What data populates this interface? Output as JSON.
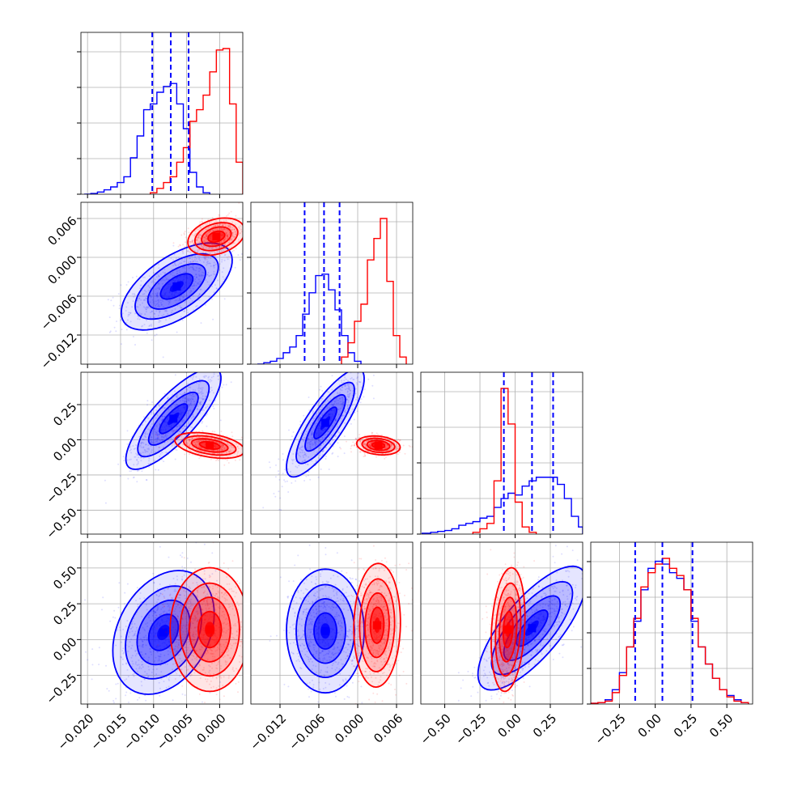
{
  "chart_data": {
    "type": "corner",
    "title": "",
    "n_params": 4,
    "grid": true,
    "legend": "none",
    "colors": {
      "blue": "#0000ff",
      "red": "#ff0000"
    },
    "series": [
      {
        "color": "#0000ff"
      },
      {
        "color": "#ff0000"
      }
    ],
    "params": [
      {
        "range": [
          -0.021,
          0.0035
        ],
        "ticks": [
          -0.02,
          -0.015,
          -0.01,
          -0.005,
          0.0
        ],
        "tick_labels": [
          "−0.020",
          "−0.015",
          "−0.010",
          "−0.005",
          "0.000"
        ]
      },
      {
        "range": [
          -0.0165,
          0.0085
        ],
        "ticks": [
          -0.012,
          -0.006,
          0.0,
          0.006
        ],
        "tick_labels": [
          "−0.012",
          "−0.006",
          "0.000",
          "0.006"
        ]
      },
      {
        "range": [
          -0.67,
          0.48
        ],
        "ticks": [
          -0.5,
          -0.25,
          0.0,
          0.25
        ],
        "tick_labels": [
          "−0.50",
          "−0.25",
          "0.00",
          "0.25"
        ]
      },
      {
        "range": [
          -0.45,
          0.68
        ],
        "ticks": [
          -0.25,
          0.0,
          0.25,
          0.5
        ],
        "tick_labels": [
          "−0.25",
          "0.00",
          "0.25",
          "0.50"
        ]
      }
    ],
    "quantile_lines": [
      {
        "param": 0,
        "values": [
          -0.0102,
          -0.0074,
          -0.0047
        ]
      },
      {
        "param": 1,
        "values": [
          -0.0082,
          -0.0052,
          -0.0028
        ]
      },
      {
        "param": 2,
        "values": [
          -0.08,
          0.12,
          0.27
        ]
      },
      {
        "param": 3,
        "values": [
          -0.14,
          0.05,
          0.26
        ]
      }
    ],
    "marginals": [
      {
        "param": 0,
        "blue": {
          "edges": [
            -0.0205,
            -0.0195,
            -0.0185,
            -0.0175,
            -0.0165,
            -0.0155,
            -0.0145,
            -0.0135,
            -0.0125,
            -0.0115,
            -0.0105,
            -0.0095,
            -0.0085,
            -0.0075,
            -0.0065,
            -0.0055,
            -0.0045,
            -0.0035,
            -0.0025,
            -0.0015
          ],
          "counts": [
            0,
            0.5,
            1.5,
            3,
            5,
            8,
            12,
            25,
            40,
            58,
            62,
            70,
            74,
            76,
            62,
            45,
            15,
            5,
            1
          ]
        },
        "red": {
          "edges": [
            -0.0105,
            -0.0095,
            -0.0085,
            -0.0075,
            -0.0065,
            -0.0055,
            -0.0045,
            -0.0035,
            -0.0025,
            -0.0015,
            -0.0005,
            0.0005,
            0.0015,
            0.0025,
            0.0035
          ],
          "counts": [
            1,
            4,
            8,
            12,
            22,
            32,
            50,
            58,
            68,
            84,
            99,
            100,
            62,
            22
          ]
        }
      },
      {
        "param": 1,
        "blue": {
          "edges": [
            -0.0155,
            -0.0145,
            -0.0135,
            -0.0125,
            -0.0115,
            -0.0105,
            -0.0095,
            -0.0085,
            -0.0075,
            -0.0065,
            -0.0055,
            -0.0045,
            -0.0035,
            -0.0025,
            -0.0015,
            -0.0005,
            0.0005
          ],
          "counts": [
            0,
            1,
            2,
            4,
            8,
            12,
            20,
            35,
            50,
            62,
            63,
            52,
            38,
            20,
            8,
            2
          ]
        },
        "red": {
          "edges": [
            -0.0025,
            -0.0015,
            -0.0005,
            0.0005,
            0.0015,
            0.0025,
            0.0035,
            0.0045,
            0.0055,
            0.0065,
            0.0075
          ],
          "counts": [
            5,
            15,
            30,
            42,
            73,
            88,
            102,
            58,
            20,
            5
          ]
        }
      },
      {
        "param": 2,
        "blue": {
          "edges": [
            -0.66,
            -0.6,
            -0.55,
            -0.5,
            -0.45,
            -0.4,
            -0.35,
            -0.3,
            -0.25,
            -0.2,
            -0.15,
            -0.1,
            -0.05,
            0.0,
            0.05,
            0.1,
            0.15,
            0.2,
            0.25,
            0.3,
            0.35,
            0.4,
            0.45,
            0.48
          ],
          "counts": [
            0.5,
            1,
            1.5,
            2,
            3,
            5,
            6,
            7,
            9,
            10,
            15,
            20,
            23,
            22,
            27,
            30,
            32,
            32,
            32,
            28,
            20,
            10,
            4
          ]
        },
        "red": {
          "edges": [
            -0.3,
            -0.25,
            -0.2,
            -0.15,
            -0.1,
            -0.05,
            0.0,
            0.05,
            0.1,
            0.15
          ],
          "counts": [
            1,
            3,
            6,
            30,
            82,
            62,
            18,
            4,
            1
          ]
        }
      },
      {
        "param": 3,
        "blue": {
          "edges": [
            -0.45,
            -0.4,
            -0.35,
            -0.3,
            -0.25,
            -0.2,
            -0.15,
            -0.1,
            -0.05,
            0.0,
            0.05,
            0.1,
            0.15,
            0.2,
            0.25,
            0.3,
            0.35,
            0.4,
            0.45,
            0.5,
            0.55,
            0.6,
            0.65
          ],
          "counts": [
            0.5,
            1,
            3,
            10,
            22,
            40,
            58,
            80,
            95,
            100,
            98,
            92,
            88,
            80,
            58,
            40,
            28,
            18,
            10,
            6,
            3,
            1
          ]
        },
        "red": {
          "edges": [
            -0.45,
            -0.4,
            -0.35,
            -0.3,
            -0.25,
            -0.2,
            -0.15,
            -0.1,
            -0.05,
            0.0,
            0.05,
            0.1,
            0.15,
            0.2,
            0.25,
            0.3,
            0.35,
            0.4,
            0.45,
            0.5,
            0.55,
            0.6,
            0.65
          ],
          "counts": [
            0.5,
            1,
            2,
            8,
            20,
            40,
            60,
            82,
            92,
            98,
            102,
            95,
            90,
            80,
            60,
            40,
            28,
            18,
            10,
            5,
            2,
            1
          ]
        }
      }
    ],
    "joints": [
      {
        "x": 0,
        "y": 1,
        "blue": {
          "mean": [
            -0.0065,
            -0.0045
          ],
          "sd": [
            0.0035,
            0.0028
          ],
          "rho": 0.6
        },
        "red": {
          "mean": [
            -0.0005,
            0.0032
          ],
          "sd": [
            0.0018,
            0.0012
          ],
          "rho": 0.3
        }
      },
      {
        "x": 0,
        "y": 2,
        "blue": {
          "mean": [
            -0.007,
            0.15
          ],
          "sd": [
            0.003,
            0.15
          ],
          "rho": 0.8
        },
        "red": {
          "mean": [
            -0.0015,
            -0.04
          ],
          "sd": [
            0.0022,
            0.038
          ],
          "rho": -0.4
        }
      },
      {
        "x": 1,
        "y": 2,
        "blue": {
          "mean": [
            -0.005,
            0.12
          ],
          "sd": [
            0.0025,
            0.16
          ],
          "rho": 0.82
        },
        "red": {
          "mean": [
            0.0032,
            -0.04
          ],
          "sd": [
            0.0014,
            0.028
          ],
          "rho": -0.2
        }
      },
      {
        "x": 0,
        "y": 3,
        "blue": {
          "mean": [
            -0.0085,
            0.05
          ],
          "sd": [
            0.0032,
            0.18
          ],
          "rho": 0.3
        },
        "red": {
          "mean": [
            -0.0015,
            0.07
          ],
          "sd": [
            0.0025,
            0.18
          ],
          "rho": 0.0
        }
      },
      {
        "x": 1,
        "y": 3,
        "blue": {
          "mean": [
            -0.005,
            0.06
          ],
          "sd": [
            0.0025,
            0.18
          ],
          "rho": 0.0
        },
        "red": {
          "mean": [
            0.003,
            0.1
          ],
          "sd": [
            0.0015,
            0.18
          ],
          "rho": 0.05
        }
      },
      {
        "x": 2,
        "y": 3,
        "blue": {
          "mean": [
            0.12,
            0.08
          ],
          "sd": [
            0.16,
            0.18
          ],
          "rho": 0.75
        },
        "red": {
          "mean": [
            -0.05,
            0.07
          ],
          "sd": [
            0.05,
            0.18
          ],
          "rho": 0.2
        }
      }
    ]
  }
}
